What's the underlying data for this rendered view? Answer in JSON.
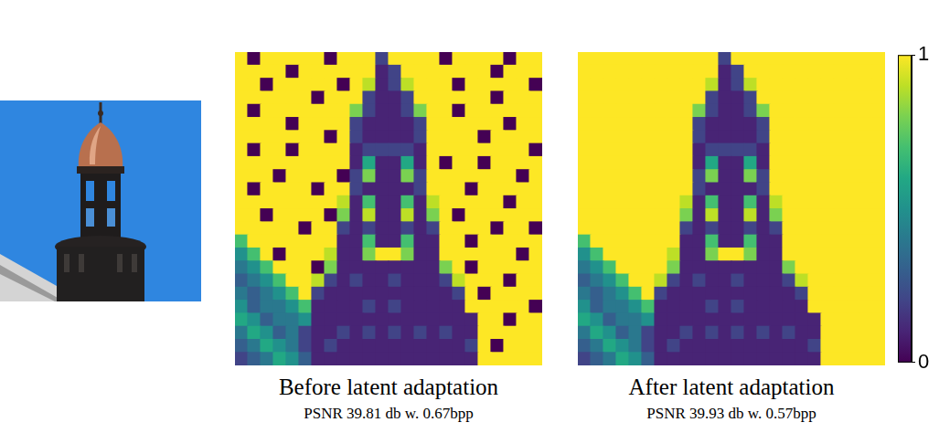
{
  "chart_data": [
    {
      "type": "heatmap",
      "title": "Before latent adaptation",
      "subtitle": "PSNR 39.81 db w. 0.67bpp",
      "tick_labels": false,
      "cells": [
        [
          1,
          0,
          1,
          1,
          1,
          1,
          1,
          0,
          1,
          1,
          1,
          0.2,
          1,
          1,
          1,
          1,
          0,
          1,
          1,
          1,
          1,
          0,
          1,
          1
        ],
        [
          1,
          1,
          1,
          1,
          0,
          1,
          1,
          1,
          1,
          1,
          1,
          0.1,
          0.2,
          1,
          1,
          1,
          1,
          1,
          1,
          1,
          0,
          1,
          1,
          1
        ],
        [
          1,
          1,
          0,
          1,
          1,
          1,
          1,
          1,
          0,
          1,
          0.9,
          0.1,
          0.2,
          0.9,
          1,
          1,
          1,
          0,
          1,
          1,
          1,
          1,
          1,
          0
        ],
        [
          1,
          1,
          1,
          1,
          1,
          1,
          0,
          1,
          1,
          1,
          0.2,
          0.1,
          0.1,
          0.2,
          1,
          1,
          1,
          1,
          1,
          1,
          0,
          1,
          1,
          1
        ],
        [
          1,
          0,
          1,
          1,
          1,
          1,
          1,
          1,
          1,
          0.8,
          0.2,
          0.1,
          0.1,
          0.2,
          0.8,
          1,
          1,
          0,
          1,
          1,
          1,
          1,
          1,
          1
        ],
        [
          1,
          1,
          1,
          1,
          0,
          1,
          1,
          1,
          1,
          0.2,
          0.1,
          0.1,
          0.1,
          0.1,
          0.2,
          1,
          1,
          1,
          1,
          1,
          1,
          0,
          1,
          1
        ],
        [
          1,
          1,
          1,
          1,
          1,
          1,
          1,
          0,
          1,
          0.2,
          0.1,
          0.1,
          0.1,
          0.1,
          0.2,
          1,
          1,
          1,
          1,
          0,
          1,
          1,
          1,
          1
        ],
        [
          1,
          0,
          1,
          1,
          0,
          1,
          1,
          1,
          1,
          0.1,
          0.2,
          0.2,
          0.2,
          0.2,
          0.1,
          1,
          1,
          1,
          1,
          1,
          1,
          1,
          1,
          0
        ],
        [
          1,
          1,
          1,
          1,
          1,
          1,
          1,
          1,
          1,
          0.1,
          0.6,
          0.1,
          0.1,
          0.6,
          0.1,
          1,
          0,
          1,
          1,
          0,
          1,
          1,
          1,
          1
        ],
        [
          1,
          1,
          1,
          0,
          1,
          1,
          1,
          1,
          0,
          0.2,
          0.8,
          0.1,
          0.1,
          0.8,
          0.2,
          1,
          1,
          1,
          1,
          1,
          1,
          1,
          0,
          1
        ],
        [
          1,
          0,
          1,
          1,
          1,
          1,
          0,
          1,
          1,
          0.2,
          0.1,
          0.1,
          0.1,
          0.1,
          0.2,
          1,
          1,
          1,
          0,
          1,
          1,
          1,
          1,
          1
        ],
        [
          1,
          1,
          1,
          1,
          1,
          1,
          1,
          1,
          0.9,
          0.1,
          0.7,
          0.1,
          0.1,
          0.7,
          0.1,
          0.9,
          1,
          1,
          1,
          1,
          1,
          0,
          1,
          1
        ],
        [
          1,
          1,
          0,
          1,
          1,
          1,
          1,
          0,
          0.8,
          0.1,
          0.9,
          0.1,
          0.1,
          0.9,
          0.1,
          0.8,
          1,
          0,
          1,
          1,
          1,
          1,
          1,
          1
        ],
        [
          1,
          1,
          1,
          1,
          1,
          0,
          1,
          1,
          0.2,
          0.1,
          0.2,
          0.1,
          0.1,
          0.2,
          0.1,
          0.2,
          1,
          1,
          1,
          1,
          0,
          1,
          1,
          0
        ],
        [
          0.7,
          1,
          1,
          1,
          1,
          1,
          1,
          1,
          0.1,
          0.1,
          0.7,
          0.1,
          0.1,
          0.7,
          0.1,
          0.1,
          1,
          1,
          0,
          1,
          1,
          1,
          1,
          1
        ],
        [
          0.5,
          0.7,
          1,
          0,
          1,
          1,
          1,
          0.9,
          0.1,
          0.1,
          0.8,
          1,
          1,
          0.8,
          0.1,
          0.1,
          1,
          1,
          1,
          1,
          1,
          1,
          0,
          1
        ],
        [
          0.4,
          0.5,
          0.7,
          1,
          1,
          1,
          0,
          0.8,
          0.1,
          0.1,
          0.1,
          0.1,
          0.1,
          0.1,
          0.1,
          0.1,
          0.8,
          1,
          0,
          1,
          1,
          1,
          1,
          1
        ],
        [
          0.3,
          0.4,
          0.5,
          0.7,
          1,
          1,
          0.9,
          0.2,
          0.1,
          0.2,
          0.1,
          0.1,
          0.2,
          0.1,
          0.1,
          0.1,
          0.2,
          0.9,
          1,
          1,
          1,
          0,
          1,
          1
        ],
        [
          0.4,
          0.3,
          0.4,
          0.5,
          0.7,
          1,
          0.2,
          0.1,
          0.1,
          0.1,
          0.1,
          0.1,
          0.1,
          0.1,
          0.1,
          0.1,
          0.1,
          0.2,
          1,
          0,
          1,
          1,
          1,
          1
        ],
        [
          0.5,
          0.3,
          0.4,
          0.4,
          0.5,
          0.7,
          0.1,
          0.1,
          0.1,
          0.1,
          0.2,
          0.1,
          0.2,
          0.1,
          0.1,
          0.1,
          0.1,
          0.1,
          1,
          1,
          1,
          1,
          1,
          0
        ],
        [
          0.6,
          0.5,
          0.3,
          0.4,
          0.4,
          0.5,
          0.1,
          0.1,
          0.1,
          0.1,
          0.1,
          0.1,
          0.1,
          0.1,
          0.1,
          0.1,
          0.1,
          0.1,
          0.1,
          1,
          1,
          0,
          1,
          1
        ],
        [
          0.4,
          0.6,
          0.5,
          0.3,
          0.4,
          0.2,
          0.1,
          0.1,
          0.2,
          0.1,
          0.2,
          0.1,
          0.2,
          0.1,
          0.2,
          0.1,
          0.2,
          0.1,
          0.1,
          1,
          1,
          1,
          1,
          1
        ],
        [
          0.3,
          0.4,
          0.6,
          0.5,
          0.4,
          0.2,
          0.1,
          0.2,
          0.1,
          0.1,
          0.1,
          0.1,
          0.1,
          0.1,
          0.1,
          0.1,
          0.1,
          0.1,
          0.2,
          1,
          0,
          1,
          1,
          1
        ],
        [
          0.2,
          0.3,
          0.4,
          0.6,
          0.5,
          0.3,
          0.1,
          0.1,
          0.1,
          0.1,
          0.1,
          0.1,
          0.1,
          0.1,
          0.1,
          0.1,
          0.1,
          0.1,
          0.1,
          1,
          1,
          1,
          1,
          1
        ]
      ]
    },
    {
      "type": "heatmap",
      "title": "After latent adaptation",
      "subtitle": "PSNR 39.93 db w. 0.57bpp",
      "tick_labels": false,
      "cells": [
        [
          1,
          1,
          1,
          1,
          1,
          1,
          1,
          1,
          1,
          1,
          1,
          0.2,
          1,
          1,
          1,
          1,
          1,
          1,
          1,
          1,
          1,
          1,
          1,
          1
        ],
        [
          1,
          1,
          1,
          1,
          1,
          1,
          1,
          1,
          1,
          1,
          1,
          0.1,
          0.2,
          1,
          1,
          1,
          1,
          1,
          1,
          1,
          1,
          1,
          1,
          1
        ],
        [
          1,
          1,
          1,
          1,
          1,
          1,
          1,
          1,
          1,
          1,
          0.9,
          0.1,
          0.2,
          0.9,
          1,
          1,
          1,
          1,
          1,
          1,
          1,
          1,
          1,
          1
        ],
        [
          1,
          1,
          1,
          1,
          1,
          1,
          1,
          1,
          1,
          1,
          0.2,
          0.1,
          0.1,
          0.2,
          1,
          1,
          1,
          1,
          1,
          1,
          1,
          1,
          1,
          1
        ],
        [
          1,
          1,
          1,
          1,
          1,
          1,
          1,
          1,
          1,
          0.8,
          0.2,
          0.1,
          0.1,
          0.2,
          0.8,
          1,
          1,
          1,
          1,
          1,
          1,
          1,
          1,
          1
        ],
        [
          1,
          1,
          1,
          1,
          1,
          1,
          1,
          1,
          1,
          0.2,
          0.1,
          0.1,
          0.1,
          0.1,
          0.2,
          1,
          1,
          1,
          1,
          1,
          1,
          1,
          1,
          1
        ],
        [
          1,
          1,
          1,
          1,
          1,
          1,
          1,
          1,
          1,
          0.2,
          0.1,
          0.1,
          0.1,
          0.1,
          0.2,
          1,
          1,
          1,
          1,
          1,
          1,
          1,
          1,
          1
        ],
        [
          1,
          1,
          1,
          1,
          1,
          1,
          1,
          1,
          1,
          0.1,
          0.2,
          0.2,
          0.2,
          0.2,
          0.1,
          1,
          1,
          1,
          1,
          1,
          1,
          1,
          1,
          1
        ],
        [
          1,
          1,
          1,
          1,
          1,
          1,
          1,
          1,
          1,
          0.1,
          0.6,
          0.1,
          0.1,
          0.6,
          0.1,
          1,
          1,
          1,
          1,
          1,
          1,
          1,
          1,
          1
        ],
        [
          1,
          1,
          1,
          1,
          1,
          1,
          1,
          1,
          1,
          0.2,
          0.8,
          0.1,
          0.1,
          0.8,
          0.2,
          1,
          1,
          1,
          1,
          1,
          1,
          1,
          1,
          1
        ],
        [
          1,
          1,
          1,
          1,
          1,
          1,
          1,
          1,
          1,
          0.2,
          0.1,
          0.1,
          0.1,
          0.1,
          0.2,
          1,
          1,
          1,
          1,
          1,
          1,
          1,
          1,
          1
        ],
        [
          1,
          1,
          1,
          1,
          1,
          1,
          1,
          1,
          0.9,
          0.1,
          0.7,
          0.1,
          0.1,
          0.7,
          0.1,
          0.9,
          1,
          1,
          1,
          1,
          1,
          1,
          1,
          1
        ],
        [
          1,
          1,
          1,
          1,
          1,
          1,
          1,
          1,
          0.8,
          0.1,
          0.9,
          0.1,
          0.1,
          0.9,
          0.1,
          0.8,
          1,
          1,
          1,
          1,
          1,
          1,
          1,
          1
        ],
        [
          1,
          1,
          1,
          1,
          1,
          1,
          1,
          1,
          0.2,
          0.1,
          0.2,
          0.1,
          0.1,
          0.2,
          0.1,
          0.2,
          1,
          1,
          1,
          1,
          1,
          1,
          1,
          1
        ],
        [
          0.7,
          1,
          1,
          1,
          1,
          1,
          1,
          1,
          0.1,
          0.1,
          0.7,
          0.1,
          0.1,
          0.7,
          0.1,
          0.1,
          1,
          1,
          1,
          1,
          1,
          1,
          1,
          1
        ],
        [
          0.5,
          0.7,
          1,
          1,
          1,
          1,
          1,
          0.9,
          0.1,
          0.1,
          0.8,
          1,
          1,
          0.8,
          0.1,
          0.1,
          1,
          1,
          1,
          1,
          1,
          1,
          1,
          1
        ],
        [
          0.4,
          0.5,
          0.7,
          1,
          1,
          1,
          1,
          0.8,
          0.1,
          0.1,
          0.1,
          0.1,
          0.1,
          0.1,
          0.1,
          0.1,
          0.8,
          1,
          1,
          1,
          1,
          1,
          1,
          1
        ],
        [
          0.3,
          0.4,
          0.5,
          0.7,
          1,
          1,
          0.9,
          0.2,
          0.1,
          0.2,
          0.1,
          0.1,
          0.2,
          0.1,
          0.1,
          0.1,
          0.2,
          0.9,
          1,
          1,
          1,
          1,
          1,
          1
        ],
        [
          0.4,
          0.3,
          0.4,
          0.5,
          0.7,
          1,
          0.2,
          0.1,
          0.1,
          0.1,
          0.1,
          0.1,
          0.1,
          0.1,
          0.1,
          0.1,
          0.1,
          0.2,
          1,
          1,
          1,
          1,
          1,
          1
        ],
        [
          0.5,
          0.3,
          0.4,
          0.4,
          0.5,
          0.7,
          0.1,
          0.1,
          0.1,
          0.1,
          0.2,
          0.1,
          0.2,
          0.1,
          0.1,
          0.1,
          0.1,
          0.1,
          1,
          1,
          1,
          1,
          1,
          1
        ],
        [
          0.6,
          0.5,
          0.3,
          0.4,
          0.4,
          0.5,
          0.1,
          0.1,
          0.1,
          0.1,
          0.1,
          0.1,
          0.1,
          0.1,
          0.1,
          0.1,
          0.1,
          0.1,
          0.1,
          1,
          1,
          1,
          1,
          1
        ],
        [
          0.4,
          0.6,
          0.5,
          0.3,
          0.4,
          0.2,
          0.1,
          0.1,
          0.2,
          0.1,
          0.2,
          0.1,
          0.2,
          0.1,
          0.2,
          0.1,
          0.2,
          0.1,
          0.1,
          1,
          1,
          1,
          1,
          1
        ],
        [
          0.3,
          0.4,
          0.6,
          0.5,
          0.4,
          0.2,
          0.1,
          0.2,
          0.1,
          0.1,
          0.1,
          0.1,
          0.1,
          0.1,
          0.1,
          0.1,
          0.1,
          0.1,
          0.2,
          1,
          1,
          1,
          1,
          1
        ],
        [
          0.2,
          0.3,
          0.4,
          0.6,
          0.5,
          0.3,
          0.1,
          0.1,
          0.1,
          0.1,
          0.1,
          0.1,
          0.1,
          0.1,
          0.1,
          0.1,
          0.1,
          0.1,
          0.1,
          1,
          1,
          1,
          1,
          1
        ]
      ],
      "colorbar": {
        "range": [
          0,
          1
        ],
        "ticks": [
          0,
          1
        ]
      }
    }
  ]
}
